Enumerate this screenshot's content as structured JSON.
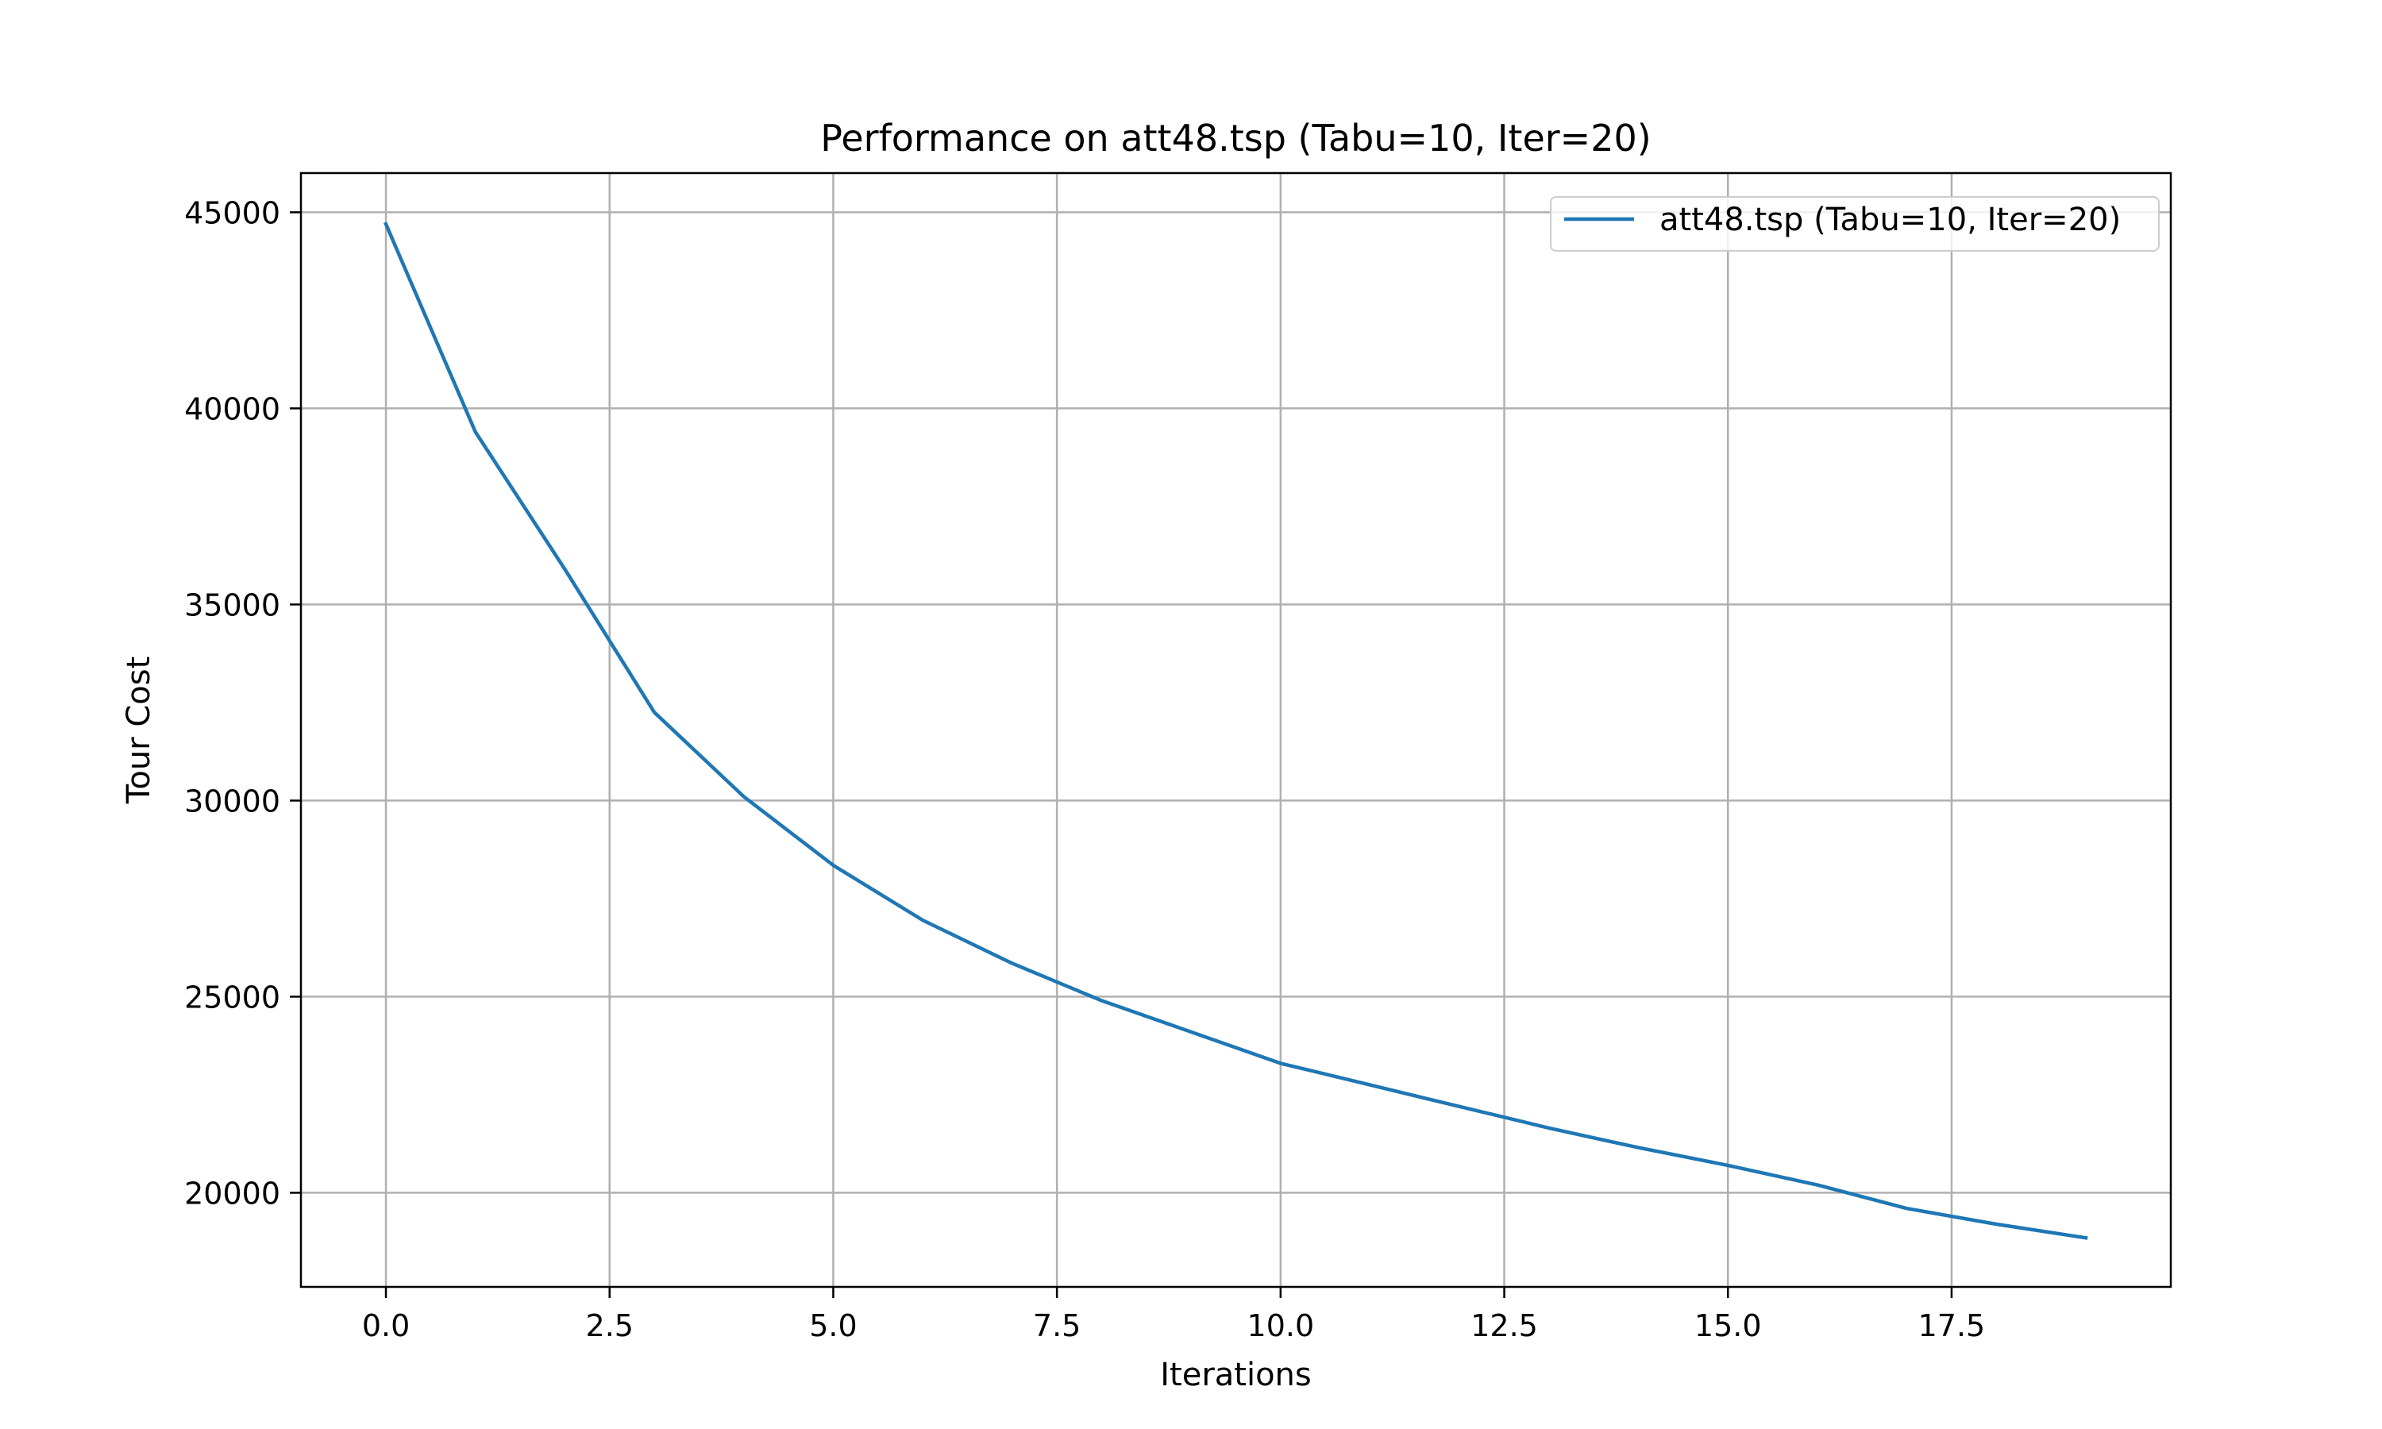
{
  "chart_data": {
    "type": "line",
    "title": "Performance on att48.tsp (Tabu=10, Iter=20)",
    "xlabel": "Iterations",
    "ylabel": "Tour Cost",
    "xlim": [
      -0.95,
      19.95
    ],
    "ylim": [
      17600,
      46000
    ],
    "xticks": [
      "0.0",
      "2.5",
      "5.0",
      "7.5",
      "10.0",
      "12.5",
      "15.0",
      "17.5"
    ],
    "yticks": [
      "20000",
      "25000",
      "30000",
      "35000",
      "40000",
      "45000"
    ],
    "grid": true,
    "legend_position": "top-right",
    "series": [
      {
        "name": "att48.tsp (Tabu=10, Iter=20)",
        "color": "#1f77b4",
        "x": [
          0,
          1,
          2,
          3,
          4,
          5,
          6,
          7,
          8,
          9,
          10,
          11,
          12,
          13,
          14,
          15,
          16,
          17,
          18,
          19
        ],
        "y": [
          44700,
          39400,
          35900,
          32250,
          30100,
          28350,
          26950,
          25850,
          24900,
          24100,
          23300,
          22750,
          22200,
          21650,
          21150,
          20700,
          20200,
          19600,
          19200,
          18850
        ]
      }
    ]
  }
}
